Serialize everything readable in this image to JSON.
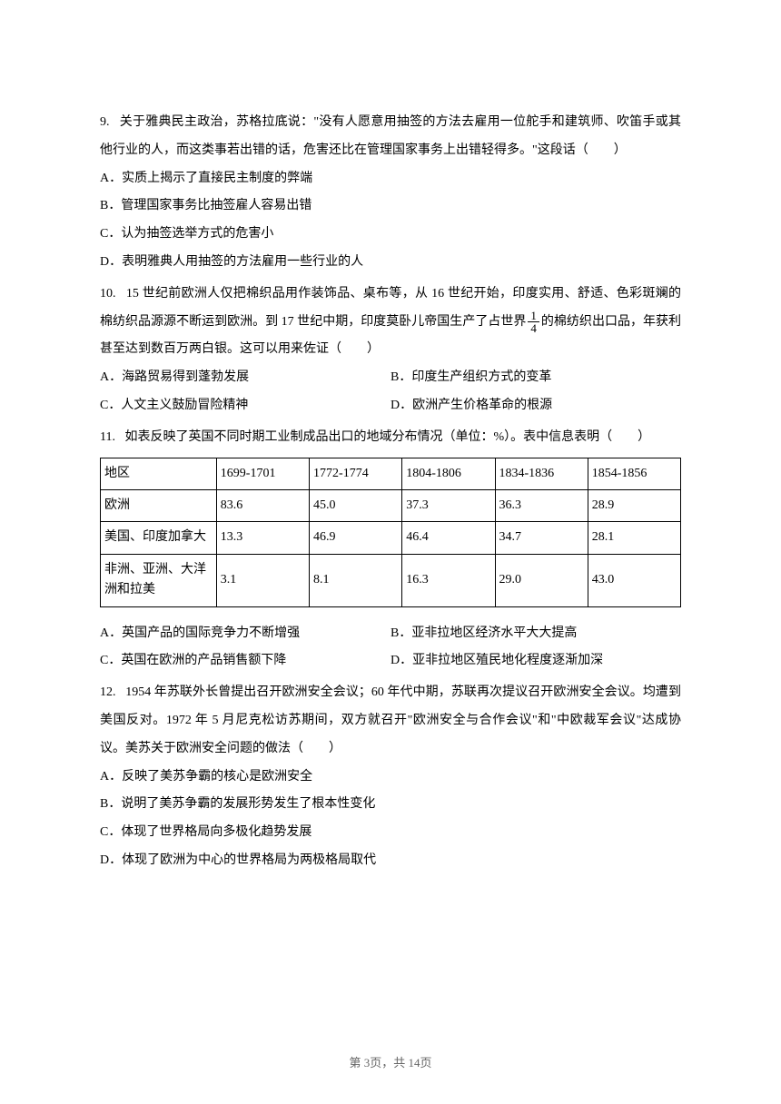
{
  "q9": {
    "num": "9.",
    "text": "关于雅典民主政治，苏格拉底说：\"没有人愿意用抽签的方法去雇用一位舵手和建筑师、吹笛手或其他行业的人，而这类事若出错的话，危害还比在管理国家事务上出错轻得多。\"这段话（　　）",
    "optA": "A．实质上揭示了直接民主制度的弊端",
    "optB": "B．管理国家事务比抽签雇人容易出错",
    "optC": "C．认为抽签选举方式的危害小",
    "optD": "D．表明雅典人用抽签的方法雇用一些行业的人"
  },
  "q10": {
    "num": "10.",
    "text_a": "15 世纪前欧洲人仅把棉织品用作装饰品、桌布等，从 16 世纪开始，印度实用、舒适、色彩斑斓的棉纺织品源源不断运到欧洲。到 17 世纪中期，印度莫卧儿帝国生产了占世界",
    "frac_num": "1",
    "frac_den": "4",
    "text_b": "的棉纺织出口品，年获利甚至达到数百万两白银。这可以用来佐证（　　）",
    "optA": "A．海路贸易得到蓬勃发展",
    "optB": "B．印度生产组织方式的变革",
    "optC": "C．人文主义鼓励冒险精神",
    "optD": "D．欧洲产生价格革命的根源"
  },
  "q11": {
    "num": "11.",
    "text": "如表反映了英国不同时期工业制成品出口的地域分布情况（单位：%）。表中信息表明（　　）",
    "table": {
      "header": [
        "地区",
        "1699-1701",
        "1772-1774",
        "1804-1806",
        "1834-1836",
        "1854-1856"
      ],
      "rows": [
        [
          "欧洲",
          "83.6",
          "45.0",
          "37.3",
          "36.3",
          "28.9"
        ],
        [
          "美国、印度加拿大",
          "13.3",
          "46.9",
          "46.4",
          "34.7",
          "28.1"
        ],
        [
          "非洲、亚洲、大洋洲和拉美",
          "3.1",
          "8.1",
          "16.3",
          "29.0",
          "43.0"
        ]
      ]
    },
    "optA": "A．英国产品的国际竞争力不断增强",
    "optB": "B．亚非拉地区经济水平大大提高",
    "optC": "C．英国在欧洲的产品销售额下降",
    "optD": "D．亚非拉地区殖民地化程度逐渐加深"
  },
  "q12": {
    "num": "12.",
    "text": "1954 年苏联外长曾提出召开欧洲安全会议；60 年代中期，苏联再次提议召开欧洲安全会议。均遭到美国反对。1972 年 5 月尼克松访苏期间，双方就召开\"欧洲安全与合作会议\"和\"中欧裁军会议\"达成协议。美苏关于欧洲安全问题的做法（　　）",
    "optA": "A．反映了美苏争霸的核心是欧洲安全",
    "optB": "B．说明了美苏争霸的发展形势发生了根本性变化",
    "optC": "C．体现了世界格局向多极化趋势发展",
    "optD": "D．体现了欧洲为中心的世界格局为两极格局取代"
  },
  "footer": "第 3页，共 14页"
}
